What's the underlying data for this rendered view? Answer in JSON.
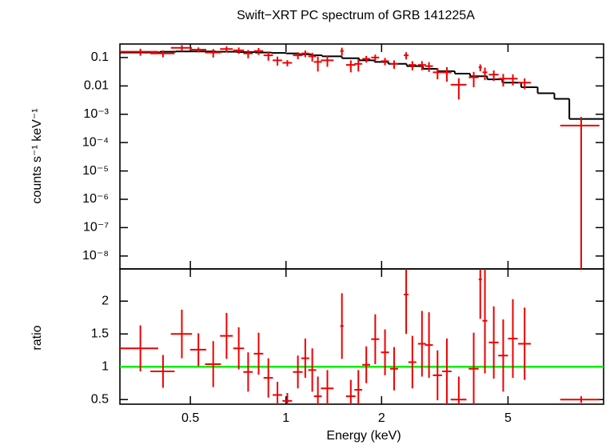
{
  "chart_data": [
    {
      "type": "errorbar",
      "title": "Swift−XRT PC spectrum of GRB 141225A",
      "y_label": "counts s⁻¹ keV⁻¹",
      "log_x": true,
      "log_y": true,
      "xlim": [
        0.3,
        10
      ],
      "xticks": [
        0.5,
        1,
        2,
        5
      ],
      "ylim": [
        3.5e-09,
        0.3
      ],
      "yticks": [
        0.1,
        0.01,
        {
          "value": 0.001,
          "label": "10⁻³"
        },
        {
          "value": 0.0001,
          "label": "10⁻⁴"
        },
        {
          "value": 1e-05,
          "label": "10⁻⁵"
        },
        {
          "value": 1e-06,
          "label": "10⁻⁶"
        },
        {
          "value": 1e-07,
          "label": "10⁻⁷"
        },
        {
          "value": 1e-08,
          "label": "10⁻⁸"
        }
      ],
      "data": {
        "color": "#ee0000",
        "x": [
          0.348,
          0.41,
          0.47,
          0.53,
          0.59,
          0.65,
          0.71,
          0.76,
          0.82,
          0.88,
          0.94,
          1.01,
          1.09,
          1.15,
          1.21,
          1.26,
          1.35,
          1.5,
          1.6,
          1.69,
          1.79,
          1.91,
          2.05,
          2.19,
          2.39,
          2.5,
          2.68,
          2.82,
          3.0,
          3.21,
          3.5,
          3.9,
          4.09,
          4.23,
          4.51,
          4.83,
          5.18,
          5.64,
          8.5
        ],
        "xerr": [
          0.048,
          0.036,
          0.036,
          0.031,
          0.034,
          0.03,
          0.028,
          0.026,
          0.028,
          0.03,
          0.032,
          0.035,
          0.038,
          0.033,
          0.035,
          0.036,
          0.062,
          0.018,
          0.055,
          0.048,
          0.051,
          0.055,
          0.059,
          0.063,
          0.041,
          0.072,
          0.077,
          0.081,
          0.1,
          0.11,
          0.2,
          0.14,
          0.047,
          0.073,
          0.16,
          0.17,
          0.18,
          0.26,
          1.2
        ],
        "values": [
          0.16,
          0.14,
          0.22,
          0.19,
          0.15,
          0.2,
          0.18,
          0.14,
          0.17,
          0.12,
          0.08,
          0.065,
          0.12,
          0.14,
          0.11,
          0.07,
          0.08,
          0.17,
          0.055,
          0.06,
          0.09,
          0.1,
          0.075,
          0.06,
          0.12,
          0.055,
          0.055,
          0.05,
          0.03,
          0.03,
          0.011,
          0.02,
          0.045,
          0.03,
          0.025,
          0.018,
          0.018,
          0.013,
          0.0004
        ],
        "errors": [
          0.044,
          0.038,
          0.055,
          0.038,
          0.05,
          0.048,
          0.045,
          0.046,
          0.046,
          0.043,
          0.028,
          0.016,
          0.033,
          0.037,
          0.038,
          0.038,
          0.033,
          0.052,
          0.025,
          0.028,
          0.024,
          0.027,
          0.022,
          0.02,
          0.034,
          0.02,
          0.02,
          0.019,
          0.013,
          0.016,
          0.0077,
          0.011,
          0.012,
          0.014,
          0.01,
          0.0085,
          0.0076,
          0.0053,
          0.0004
        ]
      },
      "model": {
        "color": "#000000",
        "bins": [
          0.3,
          0.4,
          0.45,
          0.5,
          0.6,
          0.7,
          0.8,
          0.9,
          1.0,
          1.1,
          1.2,
          1.3,
          1.5,
          1.7,
          1.9,
          2.1,
          2.4,
          2.7,
          3.0,
          3.4,
          3.8,
          4.3,
          4.8,
          5.5,
          6.2,
          7.0,
          7.8,
          10
        ],
        "values": [
          0.15,
          0.16,
          0.165,
          0.165,
          0.16,
          0.155,
          0.15,
          0.145,
          0.14,
          0.13,
          0.12,
          0.11,
          0.095,
          0.08,
          0.07,
          0.06,
          0.05,
          0.04,
          0.033,
          0.027,
          0.022,
          0.017,
          0.013,
          0.009,
          0.0055,
          0.0035,
          0.00068
        ]
      }
    },
    {
      "type": "ratio",
      "x_label": "Energy (keV)",
      "y_label": "ratio",
      "log_x": true,
      "xlim": [
        0.3,
        10
      ],
      "xticks": [
        0.5,
        1,
        2,
        5
      ],
      "ylim": [
        0.43,
        2.49
      ],
      "yticks": [
        0.5,
        1,
        1.5,
        2
      ],
      "reference_line": {
        "value": 1,
        "color": "#00ee00"
      },
      "data": {
        "color": "#ee0000",
        "x": [
          0.348,
          0.41,
          0.47,
          0.53,
          0.59,
          0.65,
          0.71,
          0.76,
          0.82,
          0.88,
          0.94,
          1.01,
          1.09,
          1.15,
          1.21,
          1.26,
          1.35,
          1.5,
          1.6,
          1.69,
          1.79,
          1.91,
          2.05,
          2.19,
          2.39,
          2.5,
          2.68,
          2.82,
          3.0,
          3.21,
          3.5,
          3.9,
          4.09,
          4.23,
          4.51,
          4.83,
          5.18,
          5.64,
          8.5
        ],
        "xerr": [
          0.048,
          0.036,
          0.036,
          0.031,
          0.034,
          0.03,
          0.028,
          0.026,
          0.028,
          0.03,
          0.032,
          0.035,
          0.038,
          0.033,
          0.035,
          0.036,
          0.062,
          0.018,
          0.055,
          0.048,
          0.051,
          0.055,
          0.059,
          0.063,
          0.041,
          0.072,
          0.077,
          0.081,
          0.1,
          0.11,
          0.2,
          0.14,
          0.047,
          0.073,
          0.16,
          0.17,
          0.18,
          0.26,
          1.2
        ],
        "values": [
          1.28,
          0.93,
          1.5,
          1.26,
          1.04,
          1.47,
          1.28,
          0.92,
          1.2,
          0.83,
          0.57,
          0.48,
          0.92,
          1.13,
          0.95,
          0.55,
          0.67,
          1.62,
          0.55,
          0.65,
          1.03,
          1.42,
          1.22,
          0.97,
          2.1,
          1.07,
          1.35,
          1.33,
          0.87,
          0.93,
          0.5,
          0.97,
          2.33,
          1.7,
          1.37,
          1.17,
          1.43,
          1.35,
          0.5
        ],
        "errors": [
          0.35,
          0.25,
          0.37,
          0.25,
          0.35,
          0.35,
          0.32,
          0.3,
          0.32,
          0.3,
          0.2,
          0.12,
          0.25,
          0.3,
          0.33,
          0.3,
          0.28,
          0.5,
          0.25,
          0.3,
          0.28,
          0.38,
          0.35,
          0.33,
          0.6,
          0.4,
          0.5,
          0.5,
          0.38,
          0.5,
          0.35,
          0.55,
          0.6,
          0.8,
          0.55,
          0.55,
          0.6,
          0.55,
          0.05
        ]
      }
    }
  ]
}
